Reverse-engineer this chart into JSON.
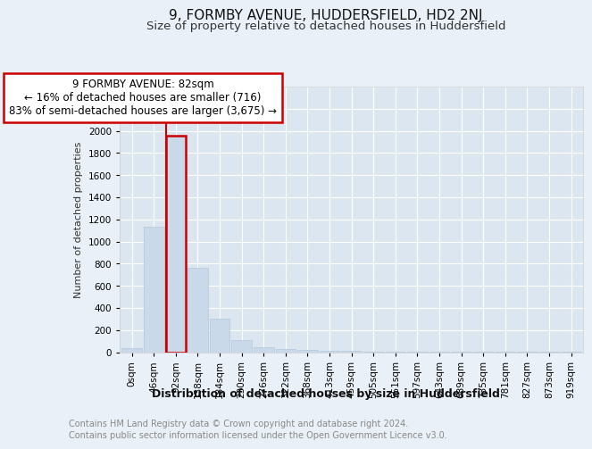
{
  "title1": "9, FORMBY AVENUE, HUDDERSFIELD, HD2 2NJ",
  "title2": "Size of property relative to detached houses in Huddersfield",
  "xlabel": "Distribution of detached houses by size in Huddersfield",
  "ylabel": "Number of detached properties",
  "footer1": "Contains HM Land Registry data © Crown copyright and database right 2024.",
  "footer2": "Contains public sector information licensed under the Open Government Licence v3.0.",
  "bar_labels": [
    "0sqm",
    "46sqm",
    "92sqm",
    "138sqm",
    "184sqm",
    "230sqm",
    "276sqm",
    "322sqm",
    "368sqm",
    "413sqm",
    "459sqm",
    "505sqm",
    "551sqm",
    "597sqm",
    "643sqm",
    "689sqm",
    "735sqm",
    "781sqm",
    "827sqm",
    "873sqm",
    "919sqm"
  ],
  "bar_values": [
    40,
    1130,
    1960,
    760,
    300,
    110,
    45,
    30,
    20,
    15,
    10,
    5,
    3,
    2,
    1,
    1,
    1,
    1,
    1,
    1,
    1
  ],
  "bar_color": "#c9d9ea",
  "bar_edge_color": "#b0c8dc",
  "highlight_bar_index": 2,
  "highlight_color": "#cc0000",
  "annotation_line1": "9 FORMBY AVENUE: 82sqm",
  "annotation_line2": "← 16% of detached houses are smaller (716)",
  "annotation_line3": "83% of semi-detached houses are larger (3,675) →",
  "annotation_box_color": "#cc0000",
  "annotation_text_color": "#000000",
  "ylim": [
    0,
    2400
  ],
  "ytick_interval": 200,
  "bg_color": "#eaf0f7",
  "plot_bg_color": "#dce6f0",
  "grid_color": "#ffffff",
  "title1_fontsize": 11,
  "title2_fontsize": 9.5,
  "xlabel_fontsize": 9,
  "ylabel_fontsize": 8,
  "tick_fontsize": 7.5,
  "footer_fontsize": 7,
  "annot_fontsize": 8.5
}
